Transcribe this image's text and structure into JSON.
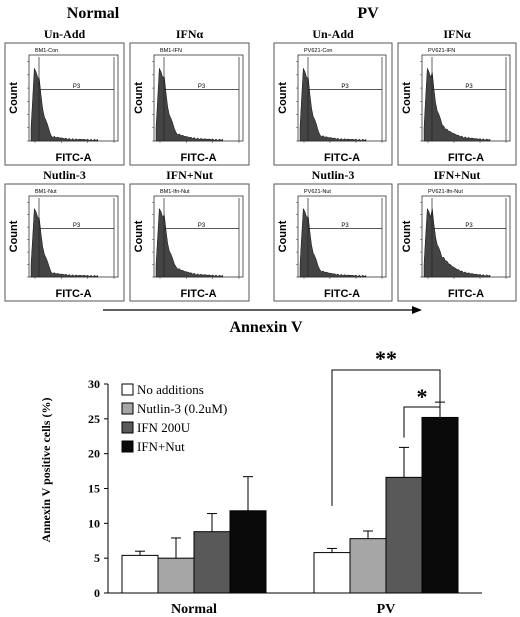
{
  "flow": {
    "group_labels": [
      "Normal",
      "PV"
    ],
    "annexin_label": "Annexin V",
    "x_axis_label": "FITC-A",
    "y_axis_label": "Count",
    "gate_label": "P3",
    "panels": [
      {
        "title": "Un-Add",
        "sample": "BM1-Con",
        "group": "Normal",
        "tail": 0.05
      },
      {
        "title": "IFNα",
        "sample": "BM1-IFN",
        "group": "Normal",
        "tail": 0.09
      },
      {
        "title": "Un-Add",
        "sample": "PV621-Con",
        "group": "PV",
        "tail": 0.06
      },
      {
        "title": "IFNα",
        "sample": "PV621-IFN",
        "group": "PV",
        "tail": 0.17
      },
      {
        "title": "Nutlin-3",
        "sample": "BM1-Nut",
        "group": "Normal",
        "tail": 0.05
      },
      {
        "title": "IFN+Nut",
        "sample": "BM1-Ifn-Nut",
        "group": "Normal",
        "tail": 0.12
      },
      {
        "title": "Nutlin-3",
        "sample": "PV621-Nut",
        "group": "PV",
        "tail": 0.08
      },
      {
        "title": "IFN+Nut",
        "sample": "PV621-Ifn-Nut",
        "group": "PV",
        "tail": 0.25
      }
    ]
  },
  "chart_data": {
    "type": "bar",
    "categories": [
      "Normal",
      "PV"
    ],
    "ylabel": "Annexin V positive cells (%)",
    "xlabel": "",
    "ylim": [
      0,
      30
    ],
    "yticks": [
      0,
      5,
      10,
      15,
      20,
      25,
      30
    ],
    "legend_position": "top-left",
    "series": [
      {
        "name": "No additions",
        "color": "#ffffff",
        "values": [
          5.4,
          5.8
        ],
        "errors": [
          0.6,
          0.6
        ]
      },
      {
        "name": "Nutlin-3 (0.2uM)",
        "color": "#a6a6a6",
        "values": [
          5.0,
          7.8
        ],
        "errors": [
          2.9,
          1.1
        ]
      },
      {
        "name": "IFN 200U",
        "color": "#595959",
        "values": [
          8.8,
          16.6
        ],
        "errors": [
          2.6,
          4.3
        ]
      },
      {
        "name": "IFN+Nut",
        "color": "#0a0a0a",
        "values": [
          11.8,
          25.2
        ],
        "errors": [
          4.9,
          2.2
        ]
      }
    ],
    "significance": [
      "**",
      "*"
    ]
  }
}
